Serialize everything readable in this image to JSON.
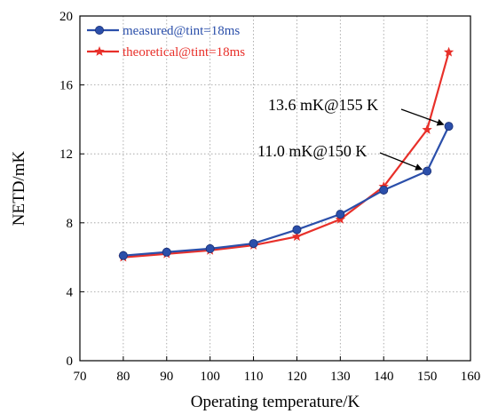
{
  "chart_data": {
    "type": "line",
    "title": "",
    "xlabel": "Operating temperature/K",
    "ylabel": "NETD/mK",
    "xlim": [
      70,
      160
    ],
    "ylim": [
      0,
      20
    ],
    "xticks": [
      70,
      80,
      90,
      100,
      110,
      120,
      130,
      140,
      150,
      160
    ],
    "yticks": [
      0,
      4,
      8,
      12,
      16,
      20
    ],
    "grid": true,
    "legend_position": "top-left",
    "series": [
      {
        "name": "measured@tint=18ms",
        "color": "#2b4faa",
        "marker": "circle",
        "x": [
          80,
          90,
          100,
          110,
          120,
          130,
          140,
          150,
          155
        ],
        "y": [
          6.1,
          6.3,
          6.5,
          6.8,
          7.6,
          8.5,
          9.9,
          11.0,
          13.6
        ]
      },
      {
        "name": "theoretical@tint=18ms",
        "color": "#e8302a",
        "marker": "star",
        "x": [
          80,
          90,
          100,
          110,
          120,
          130,
          140,
          150,
          155
        ],
        "y": [
          6.0,
          6.2,
          6.4,
          6.7,
          7.2,
          8.2,
          10.1,
          13.4,
          17.9
        ]
      }
    ],
    "annotations": [
      {
        "text": "13.6 mK@155 K",
        "x": 155,
        "y": 13.6
      },
      {
        "text": "11.0 mK@150 K",
        "x": 150,
        "y": 11.0
      }
    ]
  }
}
